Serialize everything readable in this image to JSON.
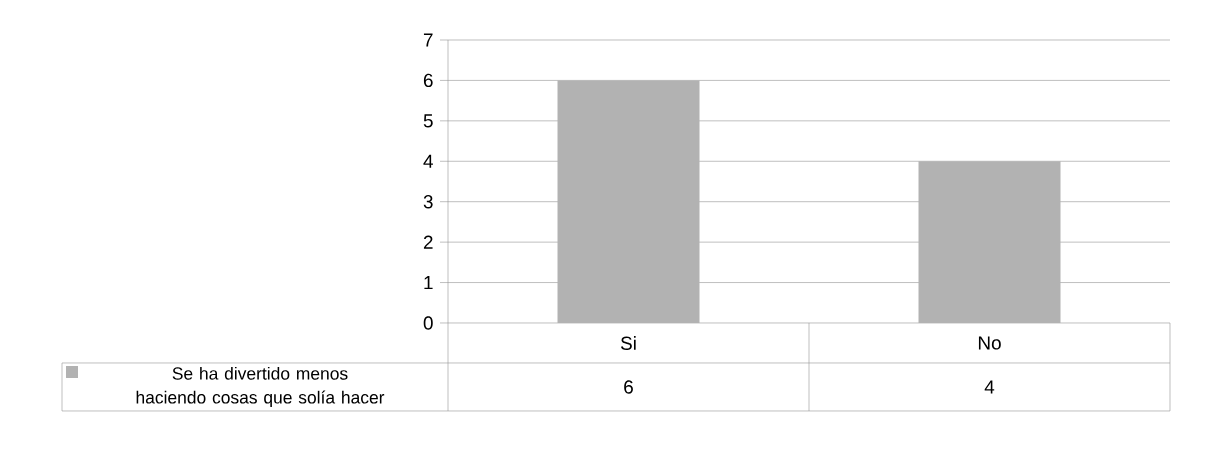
{
  "chart_data": {
    "type": "bar",
    "categories": [
      "Si",
      "No"
    ],
    "series": [
      {
        "name": "Se ha divertido menos haciendo cosas que solía hacer",
        "color": "#b2b2b2",
        "values": [
          6,
          4
        ]
      }
    ],
    "ylim": [
      0,
      7
    ],
    "yticks": [
      0,
      1,
      2,
      3,
      4,
      5,
      6,
      7
    ],
    "grid": "y",
    "legend": "bottom",
    "data_labels": true
  }
}
